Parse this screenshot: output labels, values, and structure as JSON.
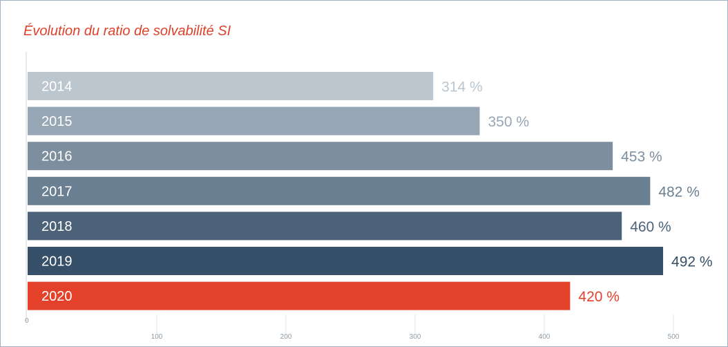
{
  "chart_data": {
    "type": "bar",
    "orientation": "horizontal",
    "title": "Évolution du ratio de solvabilité SI",
    "categories": [
      "2014",
      "2015",
      "2016",
      "2017",
      "2018",
      "2019",
      "2020"
    ],
    "values": [
      314,
      350,
      453,
      482,
      460,
      492,
      420
    ],
    "value_labels": [
      "314 %",
      "350 %",
      "453 %",
      "482 %",
      "460 %",
      "492 %",
      "420 %"
    ],
    "colors": [
      "#bcc6ce",
      "#96a6b5",
      "#7d8e9f",
      "#6a7f92",
      "#4b6279",
      "#375069",
      "#e4412b"
    ],
    "label_colors": [
      "#bcc6ce",
      "#96a6b5",
      "#7d8e9f",
      "#6a7f92",
      "#4b6279",
      "#375069",
      "#e4412b"
    ],
    "xlim": [
      0,
      500
    ],
    "x_ticks": [
      "0",
      "100",
      "200",
      "300",
      "400",
      "500"
    ],
    "grid": true,
    "legend": "none",
    "frame_color": "#9fb1c3"
  }
}
